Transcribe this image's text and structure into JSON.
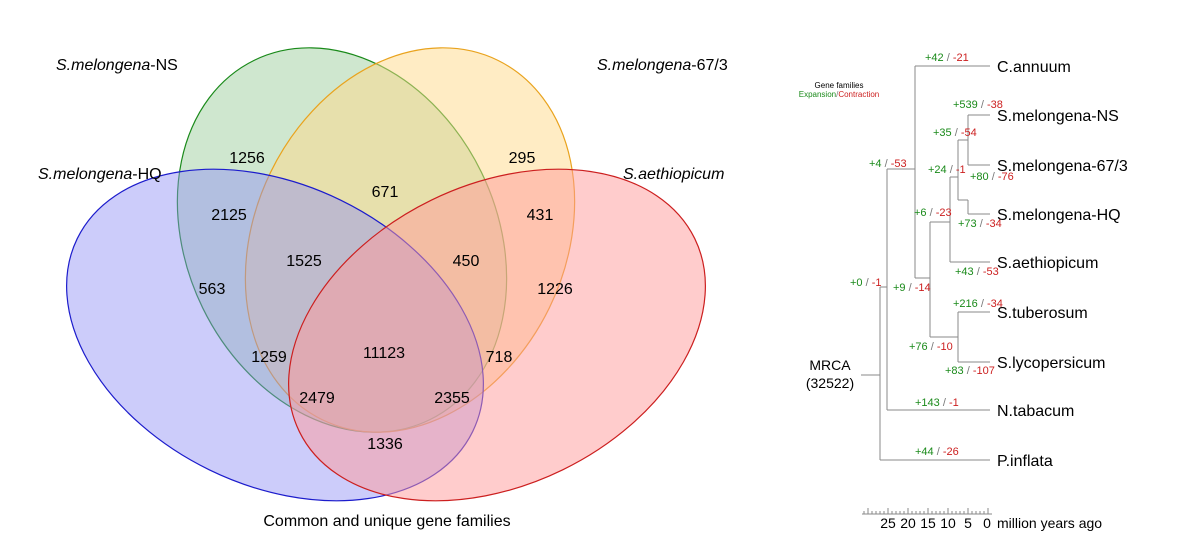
{
  "venn": {
    "sets": [
      {
        "key": "NS",
        "italic": "S.melongena",
        "suffix": "-NS",
        "fill": "#9fd09f",
        "stroke": "#1a8a1a"
      },
      {
        "key": "673",
        "italic": "S.melongena",
        "suffix": "-67/3",
        "fill": "#ffd98a",
        "stroke": "#e9a31e"
      },
      {
        "key": "HQ",
        "italic": "S.melongena",
        "suffix": "-HQ",
        "fill": "#8f8ff5",
        "stroke": "#1c1ccc"
      },
      {
        "key": "AE",
        "italic": "S.aethiopicum",
        "suffix": "",
        "fill": "#ff9a9a",
        "stroke": "#cc1f1f"
      }
    ],
    "counts": [
      "1256",
      "295",
      "563",
      "1226",
      "2125",
      "671",
      "431",
      "1525",
      "450",
      "1259",
      "11123",
      "718",
      "2479",
      "2355",
      "1336"
    ],
    "caption": "Common and unique gene families"
  },
  "tree": {
    "legend": {
      "title": "Gene families",
      "expansion": "Expansion",
      "sep": "/",
      "contraction": "Contraction"
    },
    "root": {
      "name": "MRCA",
      "count": "(32522)"
    },
    "leaves": [
      "C.annuum",
      "S.melongena-NS",
      "S.melongena-67/3",
      "S.melongena-HQ",
      "S.aethiopicum",
      "S.tuberosum",
      "S.lycopersicum",
      "N.tabacum",
      "P.inflata"
    ],
    "events": [
      {
        "exp": "+42",
        "con": "-21"
      },
      {
        "exp": "+539",
        "con": "-38"
      },
      {
        "exp": "+35",
        "con": "-54"
      },
      {
        "exp": "+4",
        "con": "-53"
      },
      {
        "exp": "+24",
        "con": "-1"
      },
      {
        "exp": "+80",
        "con": "-76"
      },
      {
        "exp": "+6",
        "con": "-23"
      },
      {
        "exp": "+73",
        "con": "-34"
      },
      {
        "exp": "+43",
        "con": "-53"
      },
      {
        "exp": "+0",
        "con": "-1"
      },
      {
        "exp": "+9",
        "con": "-14"
      },
      {
        "exp": "+216",
        "con": "-34"
      },
      {
        "exp": "+76",
        "con": "-10"
      },
      {
        "exp": "+83",
        "con": "-107"
      },
      {
        "exp": "+143",
        "con": "-1"
      },
      {
        "exp": "+44",
        "con": "-26"
      }
    ],
    "axis": {
      "ticks": [
        "25",
        "20",
        "15",
        "10",
        "5",
        "0"
      ],
      "unit": "million years ago"
    }
  }
}
